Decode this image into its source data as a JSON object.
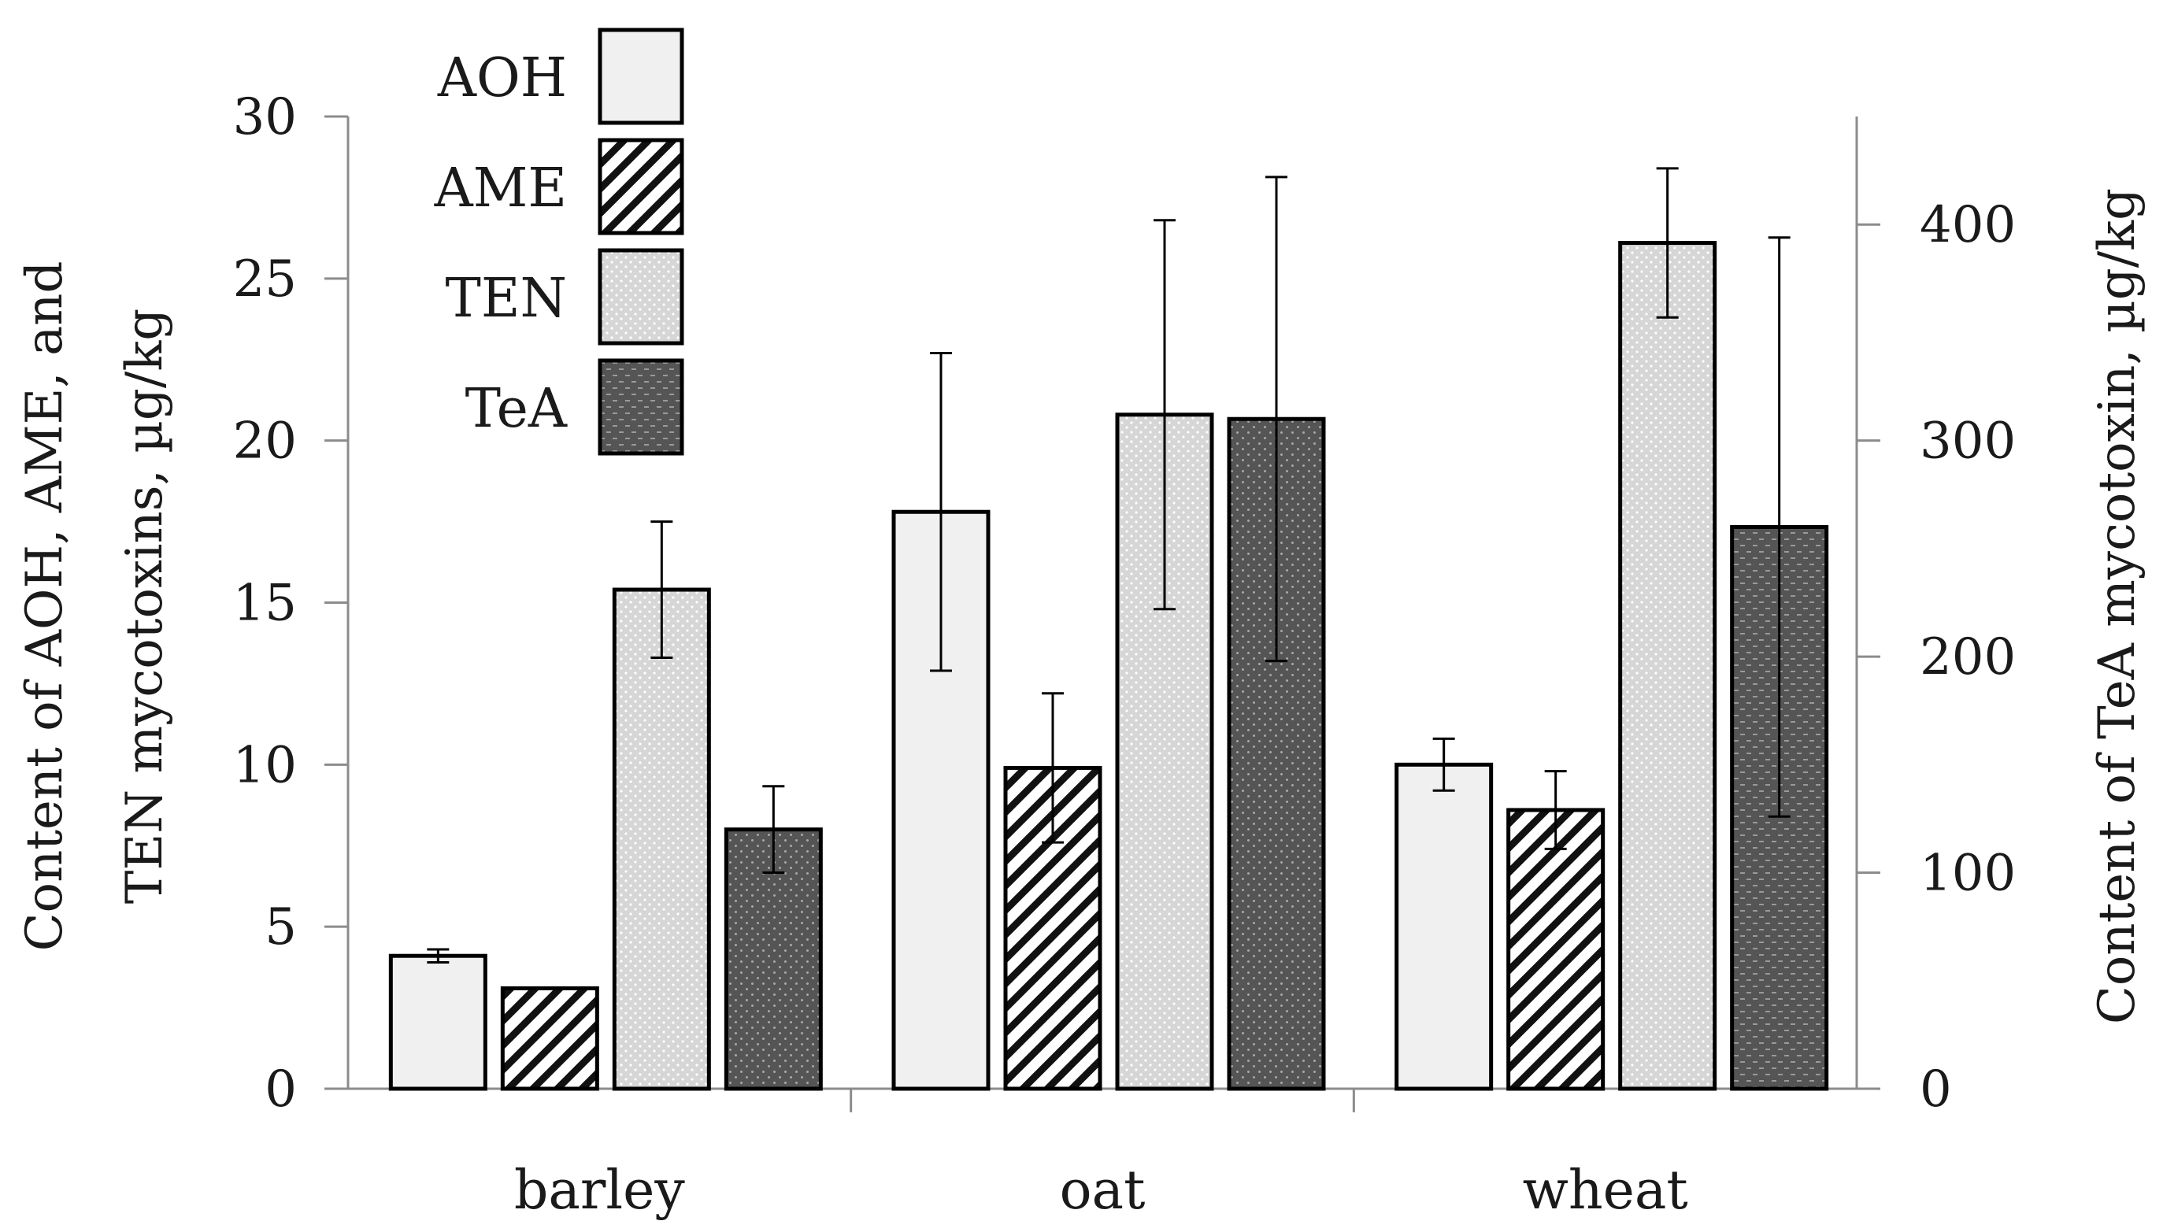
{
  "chart_data": {
    "type": "bar",
    "categories": [
      "barley",
      "oat",
      "wheat"
    ],
    "series": [
      {
        "name": "AOH",
        "axis": "left",
        "values": [
          4.1,
          17.8,
          10.0
        ],
        "errors": [
          0.2,
          4.9,
          0.8
        ],
        "fill": "#f0f0f0",
        "pattern": "solid"
      },
      {
        "name": "AME",
        "axis": "left",
        "values": [
          3.1,
          9.9,
          8.6
        ],
        "errors": [
          null,
          2.3,
          1.2
        ],
        "fill": "#ffffff",
        "pattern": "diagonal-stripes"
      },
      {
        "name": "TEN",
        "axis": "left",
        "values": [
          15.4,
          20.8,
          26.1
        ],
        "errors": [
          2.1,
          6.0,
          2.3
        ],
        "fill": "#d9d9d9",
        "pattern": "fine-dots"
      },
      {
        "name": "TeA",
        "axis": "right",
        "values": [
          120,
          310,
          260
        ],
        "errors": [
          20,
          112,
          134
        ],
        "fill": "#595959",
        "pattern": "dots-dashes"
      }
    ],
    "left_axis": {
      "label_line1": "Content of AOH, AME, and",
      "label_line2": "TEN mycotoxins, µg/kg",
      "ylim": [
        0,
        30
      ],
      "ticks": [
        "0",
        "5",
        "10",
        "15",
        "20",
        "25",
        "30"
      ]
    },
    "right_axis": {
      "label": "Content of TeA mycotoxin, µg/kg",
      "ylim": [
        0,
        450
      ],
      "ticks": [
        "0",
        "100",
        "200",
        "300",
        "400"
      ]
    },
    "legend": {
      "position": "top-left",
      "entries": [
        "AOH",
        "AME",
        "TEN",
        "TeA"
      ]
    },
    "grid": false
  }
}
